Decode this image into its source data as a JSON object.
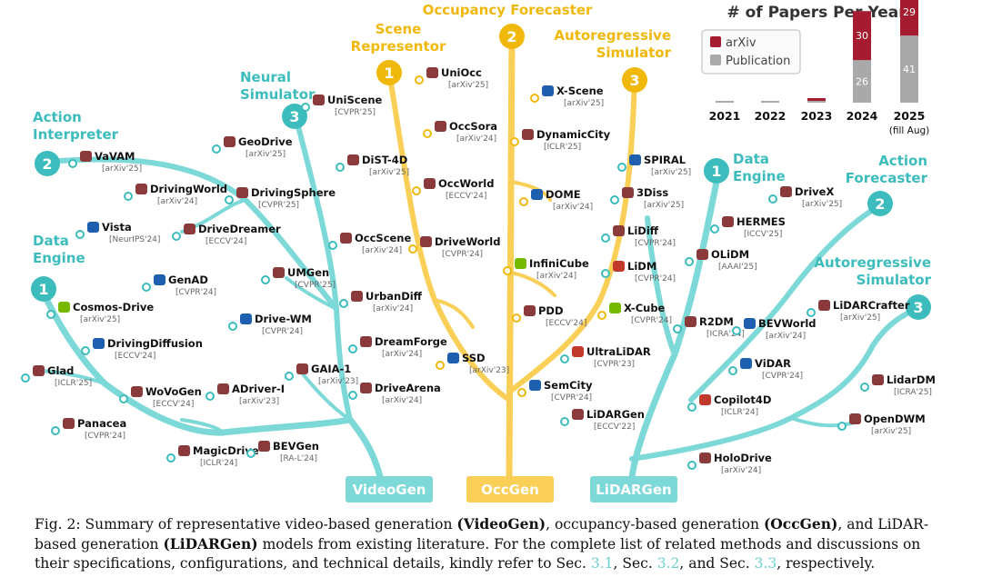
{
  "chart_data": {
    "type": "bar",
    "title": "# of Papers Per Year",
    "categories": [
      "2021",
      "2022",
      "2023",
      "2024",
      "2025 (fill Aug)"
    ],
    "series": [
      {
        "name": "arXiv",
        "values": [
          0,
          0,
          1,
          30,
          29
        ],
        "color": "#a51c30"
      },
      {
        "name": "Publication",
        "values": [
          0,
          1,
          0,
          26,
          41
        ],
        "color": "#a9a9a9"
      }
    ],
    "data_labels": {
      "2024": {
        "arXiv": "30",
        "Publication": "26"
      },
      "2025 (fill Aug)": {
        "arXiv": "29",
        "Publication": "41"
      }
    },
    "legend": {
      "placement": "top-left",
      "entries": [
        "arXiv",
        "Publication"
      ]
    }
  },
  "colors": {
    "videogen": "#7dd8d8",
    "occgen": "#f9cf57",
    "lidargen": "#7dd8d8",
    "teal_dot": "#3cbcbc",
    "yellow_dot": "#f1b80c",
    "arxiv": "#a51c30",
    "publication": "#a9a9a9"
  },
  "trees": {
    "videogen": "VideoGen",
    "occgen": "OccGen",
    "lidargen": "LiDARGen"
  },
  "categories": [
    {
      "num": "1",
      "label": [
        "Data",
        "Engine"
      ],
      "tree": "videogen"
    },
    {
      "num": "2",
      "label": [
        "Action",
        "Interpreter"
      ],
      "tree": "videogen"
    },
    {
      "num": "3",
      "label": [
        "Neural",
        "Simulator"
      ],
      "tree": "videogen"
    },
    {
      "num": "1",
      "label": [
        "Scene",
        "Representor"
      ],
      "tree": "occgen"
    },
    {
      "num": "2",
      "label": [
        "Occupancy Forecaster"
      ],
      "tree": "occgen"
    },
    {
      "num": "3",
      "label": [
        "Autoregressive",
        "Simulator"
      ],
      "tree": "occgen"
    },
    {
      "num": "1",
      "label": [
        "Data",
        "Engine"
      ],
      "tree": "lidargen"
    },
    {
      "num": "2",
      "label": [
        "Action",
        "Forecaster"
      ],
      "tree": "lidargen"
    },
    {
      "num": "3",
      "label": [
        "Autoregressive",
        "Simulator"
      ],
      "tree": "lidargen"
    }
  ],
  "models": [
    {
      "name": "Cosmos-Drive",
      "venue": "[arXiv'25]",
      "icon": "nvidia-logo-icon"
    },
    {
      "name": "DrivingDiffusion",
      "venue": "[ECCV'24]",
      "icon": "paw-icon"
    },
    {
      "name": "Glad",
      "venue": "[ICLR'25]",
      "icon": "shield-crest-icon"
    },
    {
      "name": "WoVoGen",
      "venue": "[ECCV'24]",
      "icon": "seal-icon"
    },
    {
      "name": "Panacea",
      "venue": "[CVPR'24]",
      "icon": "gear-seal-icon"
    },
    {
      "name": "MagicDrive",
      "venue": "[ICLR'24]",
      "icon": "building-icon"
    },
    {
      "name": "BEVGen",
      "venue": "[RA-L'24]",
      "icon": "seal-icon"
    },
    {
      "name": "GenAD",
      "venue": "[CVPR'24]",
      "icon": "laptop-icon"
    },
    {
      "name": "Drive-WM",
      "venue": "[CVPR'24]",
      "icon": "globe-icon"
    },
    {
      "name": "ADriver-I",
      "venue": "[arXiv'23]",
      "icon": "book-icon"
    },
    {
      "name": "GAIA-1",
      "venue": "[arXiv'23]",
      "icon": "ring-icon"
    },
    {
      "name": "VaVAM",
      "venue": "[arXiv'25]",
      "icon": "valeo-logo-icon"
    },
    {
      "name": "DrivingWorld",
      "venue": "[arXiv'24]",
      "icon": "shield-crest-icon"
    },
    {
      "name": "Vista",
      "venue": "[NeurIPS'24]",
      "icon": "laptop-icon"
    },
    {
      "name": "DriveDreamer",
      "venue": "[ECCV'24]",
      "icon": "triangle-logo-icon"
    },
    {
      "name": "UniScene",
      "venue": "[CVPR'25]",
      "icon": "seal-icon"
    },
    {
      "name": "GeoDrive",
      "venue": "[arXiv'25]",
      "icon": "seal-icon"
    },
    {
      "name": "DrivingSphere",
      "venue": "[CVPR'25]",
      "icon": "building-icon"
    },
    {
      "name": "DiST-4D",
      "venue": "[arXiv'25]",
      "icon": "seal-icon"
    },
    {
      "name": "OccScene",
      "venue": "[arXiv'24]",
      "icon": "seal-icon"
    },
    {
      "name": "UMGen",
      "venue": "[CVPR'25]",
      "icon": "seal-icon"
    },
    {
      "name": "UrbanDiff",
      "venue": "[arXiv'24]",
      "icon": "ucr-logo-icon"
    },
    {
      "name": "DreamForge",
      "venue": "[arXiv'24]",
      "icon": "mountain-icon"
    },
    {
      "name": "DriveArena",
      "venue": "[arXiv'24]",
      "icon": "house-icon"
    },
    {
      "name": "UniOcc",
      "venue": "[arXiv'25]",
      "icon": "ucr-logo-icon"
    },
    {
      "name": "OccSora",
      "venue": "[arXiv'24]",
      "icon": "seal-icon"
    },
    {
      "name": "OccWorld",
      "venue": "[ECCV'24]",
      "icon": "seal-icon"
    },
    {
      "name": "DriveWorld",
      "venue": "[CVPR'24]",
      "icon": "seal-icon"
    },
    {
      "name": "SSD",
      "venue": "[arXiv'23]",
      "icon": "kaist-logo-icon"
    },
    {
      "name": "X-Scene",
      "venue": "[arXiv'25]",
      "icon": "globe-icon"
    },
    {
      "name": "DynamicCity",
      "venue": "[ICLR'25]",
      "icon": "tablet-icon"
    },
    {
      "name": "DOME",
      "venue": "[arXiv'24]",
      "icon": "diamond-icon"
    },
    {
      "name": "InfiniCube",
      "venue": "[arXiv'24]",
      "icon": "nvidia-logo-icon"
    },
    {
      "name": "X-Cube",
      "venue": "[CVPR'24]",
      "icon": "nvidia-logo-icon"
    },
    {
      "name": "PDD",
      "venue": "[ECCV'24]",
      "icon": "tower-icon"
    },
    {
      "name": "SemCity",
      "venue": "[CVPR'24]",
      "icon": "kaist-logo-icon"
    },
    {
      "name": "SPIRAL",
      "venue": "[arXiv'25]",
      "icon": "tum-logo-icon"
    },
    {
      "name": "3Diss",
      "venue": "[arXiv'25]",
      "icon": "flag-icon"
    },
    {
      "name": "LiDiff",
      "venue": "[CVPR'24]",
      "icon": "flag-icon"
    },
    {
      "name": "LiDM",
      "venue": "[CVPR'24]",
      "icon": "red-logo-icon"
    },
    {
      "name": "UltraLiDAR",
      "venue": "[CVPR'23]",
      "icon": "red-logo-icon"
    },
    {
      "name": "LiDARGen",
      "venue": "[ECCV'22]",
      "icon": "dark-logo-icon"
    },
    {
      "name": "OLiDM",
      "venue": "[AAAI'25]",
      "icon": "building-icon"
    },
    {
      "name": "R2DM",
      "venue": "[ICRA'24]",
      "icon": "seal-icon"
    },
    {
      "name": "Copilot4D",
      "venue": "[ICLR'24]",
      "icon": "red-logo-icon"
    },
    {
      "name": "HoloDrive",
      "venue": "[arXiv'24]",
      "icon": "infinity-icon"
    },
    {
      "name": "DriveX",
      "venue": "[arXiv'25]",
      "icon": "building-icon"
    },
    {
      "name": "HERMES",
      "venue": "[ICCV'25]",
      "icon": "seal-icon"
    },
    {
      "name": "BEVWorld",
      "venue": "[arXiv'24]",
      "icon": "paw-icon"
    },
    {
      "name": "ViDAR",
      "venue": "[CVPR'24]",
      "icon": "laptop-icon"
    },
    {
      "name": "LiDARCrafter",
      "venue": "[arXiv'25]",
      "icon": "shield-crest-icon"
    },
    {
      "name": "LidarDM",
      "venue": "[ICRA'25]",
      "icon": "dark-logo-icon"
    },
    {
      "name": "OpenDWM",
      "venue": "[arXiv'25]",
      "icon": "infinity-icon"
    }
  ],
  "caption": {
    "fig": "Fig. 2: Summary of representative video-based generation ",
    "b1": "(VideoGen)",
    "t2": ", occupancy-based generation ",
    "b2": "(OccGen)",
    "t3": ", and LiDAR-based generation ",
    "b3": "(LiDARGen)",
    "t4": " models from existing literature. For the complete list of related methods and discussions on their specifications, configurations, and technical details, kindly refer to Sec. ",
    "r1": "3.1",
    "t5": ", Sec. ",
    "r2": "3.2",
    "t6": ", and Sec. ",
    "r3": "3.3",
    "t7": ", respectively."
  }
}
